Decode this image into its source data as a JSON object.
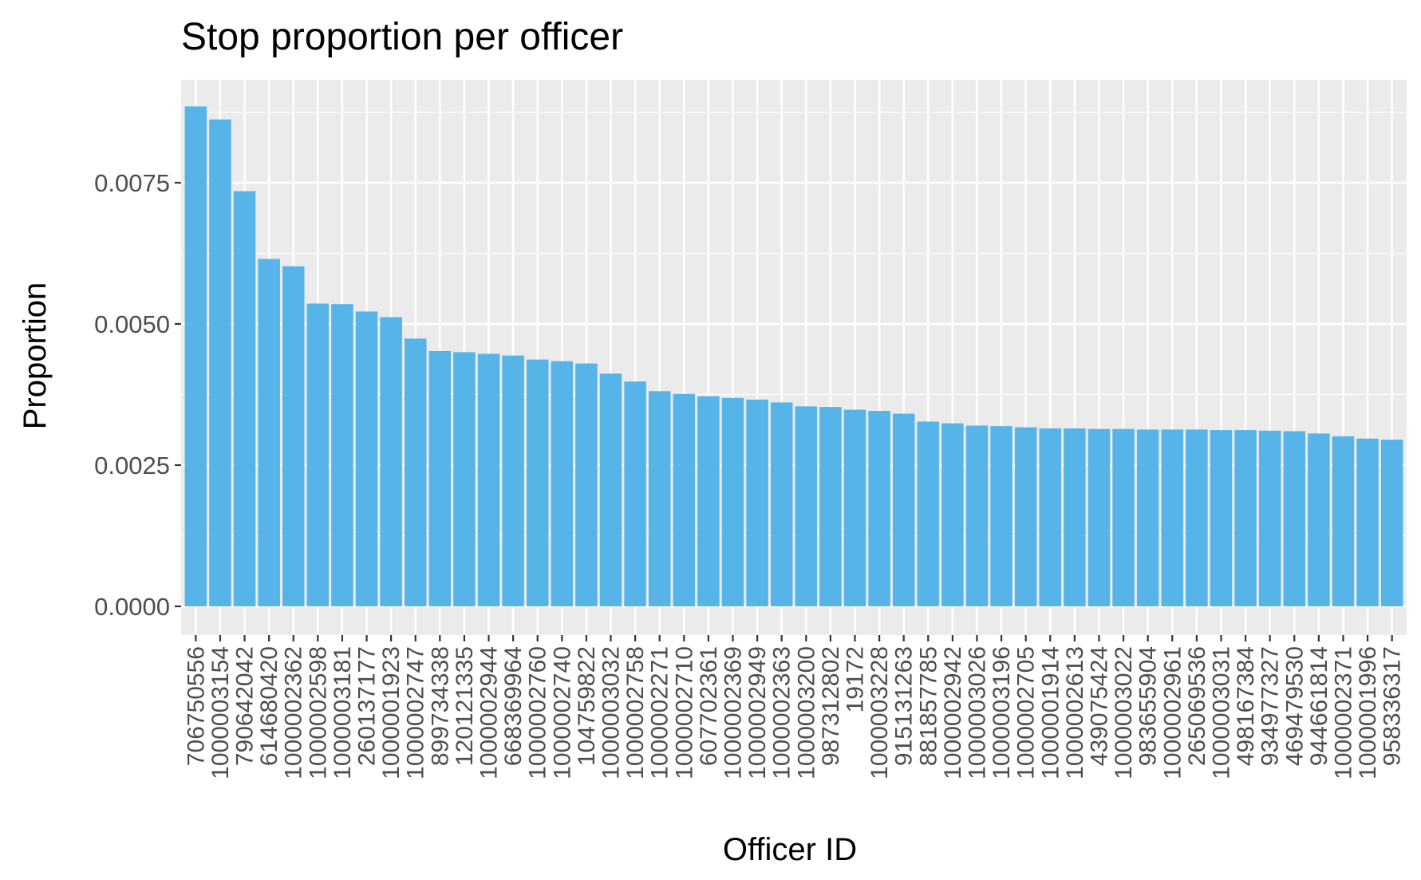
{
  "chart_data": {
    "type": "bar",
    "title": "Stop proportion per officer",
    "xlabel": "Officer ID",
    "ylabel": "Proportion",
    "ylim": [
      0,
      0.0093
    ],
    "yticks": [
      "0.0000",
      "0.0025",
      "0.0050",
      "0.0075"
    ],
    "ytick_values": [
      0,
      0.0025,
      0.005,
      0.0075
    ],
    "grid": true,
    "bar_color": "#56b4e9",
    "panel_color": "#ebebeb",
    "grid_color": "#ffffff",
    "categories": [
      "706750556",
      "1000003154",
      "790642042",
      "614680420",
      "1000002362",
      "1000002598",
      "1000003181",
      "260137177",
      "1000001923",
      "1000002747",
      "899734338",
      "120121335",
      "1000002944",
      "668369964",
      "1000002760",
      "1000002740",
      "104759822",
      "1000003032",
      "1000002758",
      "1000002271",
      "1000002710",
      "607702361",
      "1000002369",
      "1000002949",
      "1000002363",
      "1000003200",
      "987312802",
      "19172",
      "1000003228",
      "915131263",
      "881857785",
      "1000002942",
      "1000003026",
      "1000003196",
      "1000002705",
      "1000001914",
      "1000002613",
      "439075424",
      "1000003022",
      "983655904",
      "1000002961",
      "265069536",
      "1000003031",
      "498167384",
      "934977327",
      "469479530",
      "944661814",
      "1000002371",
      "1000001996",
      "958336317"
    ],
    "values": [
      0.00885,
      0.00862,
      0.00735,
      0.00615,
      0.00602,
      0.00536,
      0.00535,
      0.00522,
      0.00512,
      0.00474,
      0.00452,
      0.0045,
      0.00447,
      0.00444,
      0.00437,
      0.00434,
      0.0043,
      0.00412,
      0.00398,
      0.00381,
      0.00376,
      0.00372,
      0.00369,
      0.00366,
      0.00361,
      0.00354,
      0.00353,
      0.00348,
      0.00346,
      0.00341,
      0.00327,
      0.00324,
      0.0032,
      0.00319,
      0.00317,
      0.00315,
      0.00315,
      0.00314,
      0.00314,
      0.00313,
      0.00313,
      0.00313,
      0.00312,
      0.00312,
      0.00311,
      0.0031,
      0.00306,
      0.00301,
      0.00297,
      0.00295
    ]
  }
}
